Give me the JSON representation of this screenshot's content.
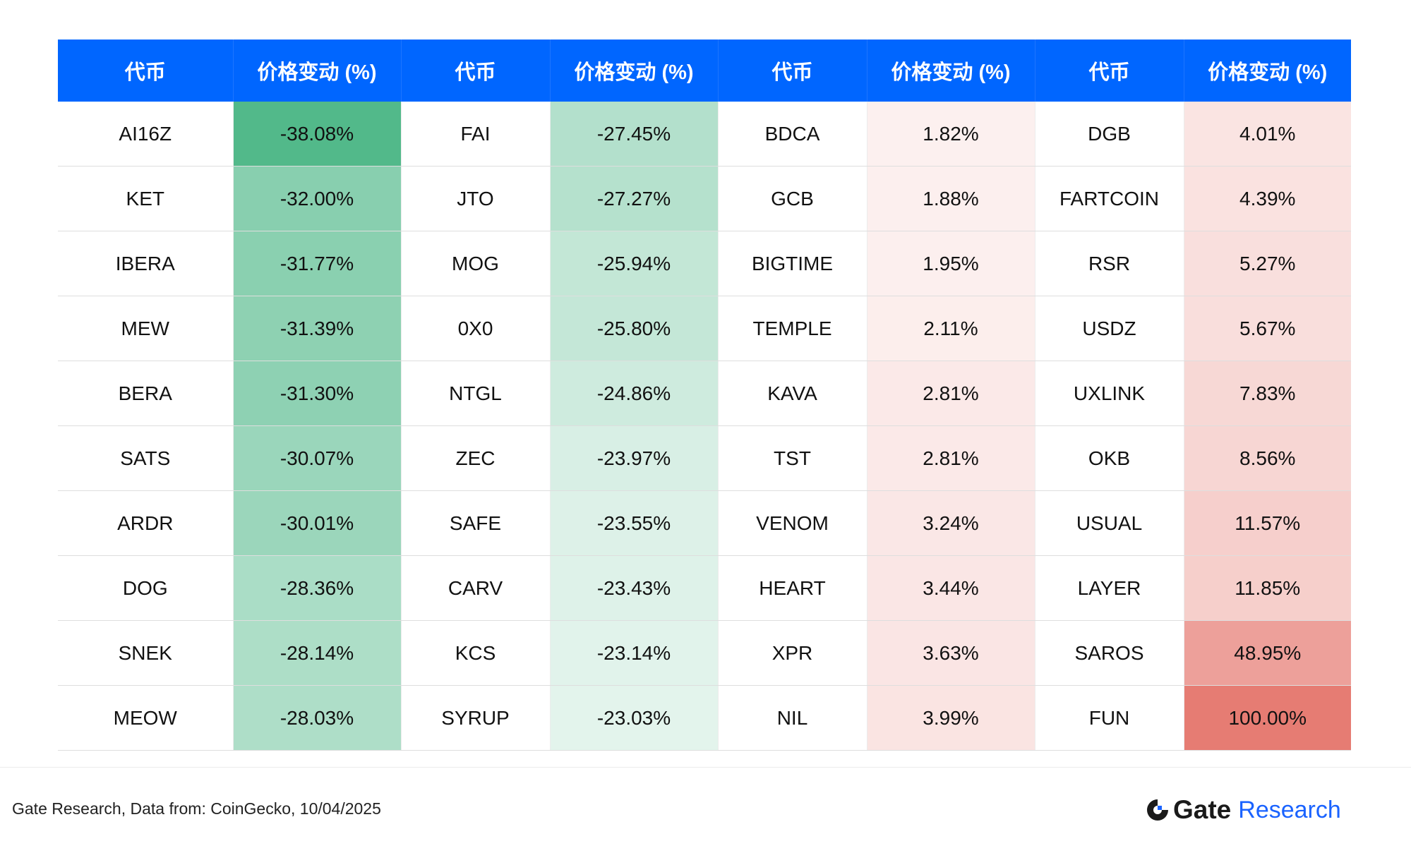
{
  "chart_data": {
    "type": "table",
    "columns": [
      "代币",
      "价格变动 (%)",
      "代币",
      "价格变动 (%)",
      "代币",
      "价格变动 (%)",
      "代币",
      "价格变动 (%)"
    ],
    "groups": [
      {
        "tokens": [
          "AI16Z",
          "KET",
          "IBERA",
          "MEW",
          "BERA",
          "SATS",
          "ARDR",
          "DOG",
          "SNEK",
          "MEOW"
        ],
        "changes": [
          -38.08,
          -32.0,
          -31.77,
          -31.39,
          -31.3,
          -30.07,
          -30.01,
          -28.36,
          -28.14,
          -28.03
        ]
      },
      {
        "tokens": [
          "FAI",
          "JTO",
          "MOG",
          "0X0",
          "NTGL",
          "ZEC",
          "SAFE",
          "CARV",
          "KCS",
          "SYRUP"
        ],
        "changes": [
          -27.45,
          -27.27,
          -25.94,
          -25.8,
          -24.86,
          -23.97,
          -23.55,
          -23.43,
          -23.14,
          -23.03
        ]
      },
      {
        "tokens": [
          "BDCA",
          "GCB",
          "BIGTIME",
          "TEMPLE",
          "KAVA",
          "TST",
          "VENOM",
          "HEART",
          "XPR",
          "NIL"
        ],
        "changes": [
          1.82,
          1.88,
          1.95,
          2.11,
          2.81,
          2.81,
          3.24,
          3.44,
          3.63,
          3.99
        ]
      },
      {
        "tokens": [
          "DGB",
          "FARTCOIN",
          "RSR",
          "USDZ",
          "UXLINK",
          "OKB",
          "USUAL",
          "LAYER",
          "SAROS",
          "FUN"
        ],
        "changes": [
          4.01,
          4.39,
          5.27,
          5.67,
          7.83,
          8.56,
          11.57,
          11.85,
          48.95,
          100.0
        ]
      }
    ],
    "colors": {
      "header": "#0066ff",
      "negative_max": "#52b98a",
      "positive_max": "#e67c73",
      "neutral": "#ffffff"
    }
  },
  "footer": {
    "source": "Gate Research, Data from: CoinGecko, 10/04/2025",
    "brand_name": "Gate",
    "brand_sub": "Research"
  }
}
